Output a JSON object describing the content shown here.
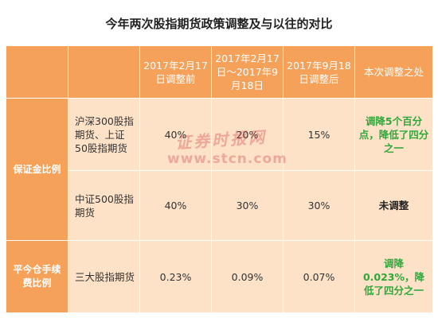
{
  "title": "今年两次股指期货政策调整及与以往的对比",
  "header": {
    "col1": "",
    "col2": "",
    "col3": "2017年2月17日调整前",
    "col4": "2017年2月17日～2017年9月18日",
    "col5": "2017年9月18日调整后",
    "col6": "本次调整之处"
  },
  "groups": {
    "margin": "保证金比例",
    "fee": "平今仓手续费比例"
  },
  "rows": [
    {
      "name": "沪深300股指期货、上证50股指期货",
      "before": "40%",
      "between": "20%",
      "after": "15%",
      "change": "调降5个百分点，降低了四分之一"
    },
    {
      "name": "中证500股指期货",
      "before": "40%",
      "between": "30%",
      "after": "30%",
      "change": "未调整"
    },
    {
      "name": "三大股指期货",
      "before": "0.23%",
      "between": "0.09%",
      "after": "0.07%",
      "change": "调降0.023%，降低了四分之一"
    }
  ],
  "watermark": {
    "line1": "证券时报网",
    "line2": "www.stcn.com"
  },
  "colors": {
    "header_bg": "#f6a15a",
    "body_bg": "#fde2c8",
    "green_text": "#2fa83a"
  }
}
